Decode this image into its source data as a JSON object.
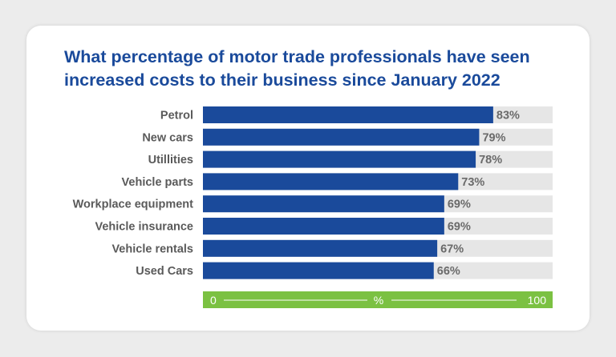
{
  "chart_data": {
    "type": "bar",
    "orientation": "horizontal",
    "title": "What percentage of motor trade professionals have seen increased costs to their business since January 2022",
    "title_lines": [
      "What percentage of motor trade professionals have seen",
      "increased costs to their business since January 2022"
    ],
    "categories": [
      "Petrol",
      "New cars",
      "Utillities",
      "Vehicle parts",
      "Workplace equipment",
      "Vehicle insurance",
      "Vehicle rentals",
      "Used Cars"
    ],
    "values": [
      83,
      79,
      78,
      73,
      69,
      69,
      67,
      66
    ],
    "value_labels": [
      "83%",
      "79%",
      "78%",
      "73%",
      "69%",
      "69%",
      "67%",
      "66%"
    ],
    "xlim": [
      0,
      100
    ],
    "axis": {
      "min_label": "0",
      "unit_label": "%",
      "max_label": "100"
    },
    "grid": false,
    "legend": "none"
  },
  "colors": {
    "bar": "#1a4a9b",
    "track": "#e6e6e6",
    "axis_bar": "#7bc142",
    "title": "#1a4a9b"
  }
}
